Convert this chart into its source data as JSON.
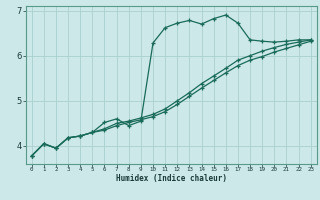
{
  "xlabel": "Humidex (Indice chaleur)",
  "bg_color": "#cce8e8",
  "grid_color": "#aad0d0",
  "line_color": "#1a6b5a",
  "ylim": [
    3.6,
    7.1
  ],
  "xlim": [
    -0.5,
    23.5
  ],
  "yticks": [
    4,
    5,
    6,
    7
  ],
  "xticks": [
    0,
    1,
    2,
    3,
    4,
    5,
    6,
    7,
    8,
    9,
    10,
    11,
    12,
    13,
    14,
    15,
    16,
    17,
    18,
    19,
    20,
    21,
    22,
    23
  ],
  "curve1_x": [
    0,
    1,
    2,
    3,
    4,
    5,
    6,
    7,
    8,
    9,
    10,
    11,
    12,
    13,
    14,
    15,
    16,
    17,
    18,
    19,
    20,
    21,
    22,
    23
  ],
  "curve1_y": [
    3.78,
    4.05,
    3.95,
    4.18,
    4.22,
    4.3,
    4.52,
    4.6,
    4.45,
    4.55,
    6.28,
    6.62,
    6.72,
    6.78,
    6.7,
    6.82,
    6.9,
    6.72,
    6.35,
    6.32,
    6.3,
    6.32,
    6.35,
    6.35
  ],
  "curve2_x": [
    0,
    1,
    2,
    3,
    4,
    5,
    6,
    7,
    8,
    9,
    10,
    11,
    12,
    13,
    14,
    15,
    16,
    17,
    18,
    19,
    20,
    21,
    22,
    23
  ],
  "curve2_y": [
    3.78,
    4.05,
    3.95,
    4.18,
    4.22,
    4.3,
    4.38,
    4.5,
    4.55,
    4.62,
    4.7,
    4.82,
    5.0,
    5.18,
    5.38,
    5.55,
    5.72,
    5.9,
    6.0,
    6.1,
    6.18,
    6.25,
    6.3,
    6.35
  ],
  "curve3_x": [
    0,
    1,
    2,
    3,
    4,
    5,
    6,
    7,
    8,
    9,
    10,
    11,
    12,
    13,
    14,
    15,
    16,
    17,
    18,
    19,
    20,
    21,
    22,
    23
  ],
  "curve3_y": [
    3.78,
    4.05,
    3.95,
    4.18,
    4.22,
    4.3,
    4.35,
    4.45,
    4.52,
    4.58,
    4.65,
    4.76,
    4.92,
    5.1,
    5.28,
    5.45,
    5.62,
    5.78,
    5.9,
    5.98,
    6.08,
    6.16,
    6.24,
    6.32
  ]
}
